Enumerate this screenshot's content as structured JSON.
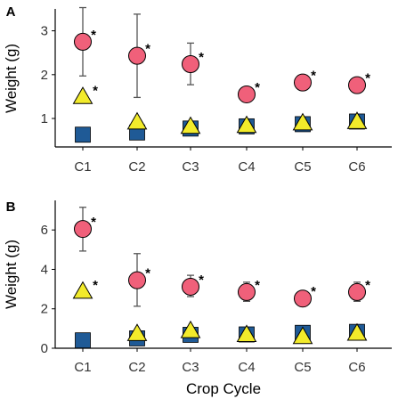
{
  "chart_data": [
    {
      "panel": "A",
      "type": "scatter",
      "xlabel": "",
      "ylabel": "Weight (g)",
      "categories": [
        "C1",
        "C2",
        "C3",
        "C4",
        "C5",
        "C6"
      ],
      "ylim": [
        0.35,
        3.5
      ],
      "yticks": [
        1,
        2,
        3
      ],
      "series": [
        {
          "shape": "circle",
          "color": "#F0607A",
          "values": [
            2.75,
            2.43,
            2.24,
            1.55,
            1.82,
            1.76
          ],
          "err_low": [
            1.97,
            1.48,
            1.77,
            1.55,
            1.82,
            1.76
          ],
          "err_high": [
            3.53,
            3.38,
            2.72,
            1.55,
            1.82,
            1.76
          ],
          "significant": [
            true,
            true,
            true,
            true,
            true,
            true
          ]
        },
        {
          "shape": "triangle",
          "color": "#F2EB2B",
          "values": [
            1.48,
            0.9,
            0.8,
            0.82,
            0.88,
            0.91
          ],
          "significant": [
            true,
            false,
            false,
            false,
            false,
            false
          ]
        },
        {
          "shape": "square",
          "color": "#1F5A96",
          "values": [
            0.63,
            0.68,
            0.77,
            0.82,
            0.87,
            0.93
          ],
          "significant": [
            false,
            false,
            false,
            false,
            false,
            false
          ]
        }
      ]
    },
    {
      "panel": "B",
      "type": "scatter",
      "xlabel": "Crop Cycle",
      "ylabel": "Weight (g)",
      "categories": [
        "C1",
        "C2",
        "C3",
        "C4",
        "C5",
        "C6"
      ],
      "ylim": [
        0,
        7.5
      ],
      "yticks": [
        0,
        2,
        4,
        6
      ],
      "series": [
        {
          "shape": "circle",
          "color": "#F0607A",
          "values": [
            6.05,
            3.45,
            3.12,
            2.85,
            2.52,
            2.85
          ],
          "err_low": [
            4.93,
            2.13,
            2.62,
            2.38,
            2.52,
            2.38
          ],
          "err_high": [
            7.15,
            4.8,
            3.7,
            3.35,
            2.52,
            3.35
          ],
          "significant": [
            true,
            true,
            true,
            true,
            true,
            true
          ]
        },
        {
          "shape": "triangle",
          "color": "#F2EB2B",
          "values": [
            2.85,
            0.7,
            0.85,
            0.65,
            0.55,
            0.72
          ],
          "significant": [
            true,
            false,
            false,
            false,
            false,
            false
          ]
        },
        {
          "shape": "square",
          "color": "#1F5A96",
          "values": [
            0.4,
            0.5,
            0.68,
            0.7,
            0.78,
            0.83
          ],
          "significant": [
            false,
            false,
            false,
            false,
            false,
            false
          ]
        }
      ]
    }
  ],
  "significance_marker": "*"
}
